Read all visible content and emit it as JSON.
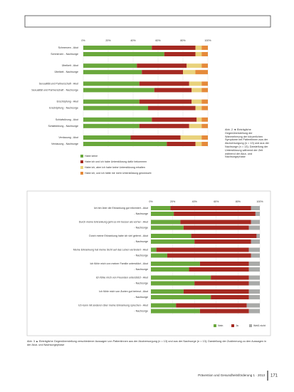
{
  "chart_data": [
    {
      "type": "stacked-bar-horizontal",
      "categories": [
        "Schmerzen - Akut",
        "Schmerzen - Nachsorge",
        "Übelkeit - Akut",
        "Übelkeit - Nachsorge",
        "Sexualität und Partnerschaft - Akut",
        "Sexualität und Partnerschaft - Nachsorge",
        "Erschöpfung - Akut",
        "Erschöpfung - Nachsorge",
        "Schlafstörung - Akut",
        "Schlafstörung - Nachsorge",
        "Verdauung - Akut",
        "Verdauung - Nachsorge"
      ],
      "series": [
        {
          "name": "Habe keine",
          "color": "#6aa83c",
          "values": [
            55,
            65,
            43,
            47,
            45,
            57,
            45,
            52,
            55,
            45,
            38,
            67
          ]
        },
        {
          "name": "Habe ich und ich habe Unterstützung dafür bekommen",
          "color": "#a52a22",
          "values": [
            35,
            25,
            40,
            33,
            40,
            30,
            42,
            38,
            36,
            40,
            40,
            23
          ]
        },
        {
          "name": "Habe ich, aber ich habe keine Unterstützung erhalten",
          "color": "#e9d27c",
          "values": [
            5,
            5,
            12,
            10,
            10,
            8,
            8,
            5,
            4,
            10,
            17,
            5
          ]
        },
        {
          "name": "Habe ich, und ich hätte mir mehr Unterstützung gewünscht",
          "color": "#e58a3a",
          "values": [
            5,
            5,
            5,
            10,
            5,
            5,
            5,
            5,
            5,
            5,
            5,
            5
          ]
        }
      ],
      "xlim": [
        0,
        100
      ],
      "xticks": [
        {
          "value": 0,
          "label": "0%"
        },
        {
          "value": 20,
          "label": "20%"
        },
        {
          "value": 40,
          "label": "40%"
        },
        {
          "value": 60,
          "label": "60%"
        },
        {
          "value": 80,
          "label": "80%"
        },
        {
          "value": 100,
          "label": "100%"
        }
      ],
      "grid": true
    },
    {
      "type": "stacked-bar-horizontal",
      "categories": [
        "Ich bin über die Erkrankung gut informiert - Akut",
        "- Nachsorge",
        "Durch meine Erkrankung geht es mir besser als vorher - Akut",
        "- Nachsorge",
        "Durch meine Erkrankung habe ich viel gelernt - Akut",
        "- Nachsorge",
        "Meine Erkrankung hat meine Sicht auf das Leben verändert - Akut",
        "- Nachsorge",
        "Ich fühle mich von meiner Familie unterstützt - Akut",
        "- Nachsorge",
        "Ich fühle mich von Freunden unterstützt - Akut",
        "- Nachsorge",
        "Ich fühle mich von Ärzten gut betreut - Akut",
        "- Nachsorge",
        "Ich kann mit anderen über meine Erkrankung sprechen - Akut",
        "- Nachsorge"
      ],
      "series": [
        {
          "name": "Nein",
          "color": "#6aa83c",
          "values": [
            18,
            21,
            27,
            30,
            37,
            40,
            5,
            15,
            45,
            35,
            55,
            40,
            30,
            55,
            23,
            45
          ]
        },
        {
          "name": "Ja",
          "color": "#a52a22",
          "values": [
            74,
            75,
            65,
            60,
            60,
            52,
            85,
            77,
            45,
            55,
            35,
            50,
            60,
            35,
            65,
            45
          ]
        },
        {
          "name": "Weiß nicht",
          "color": "#a9aaa8",
          "values": [
            8,
            4,
            8,
            10,
            3,
            8,
            10,
            8,
            10,
            10,
            10,
            10,
            10,
            10,
            12,
            10
          ]
        }
      ],
      "xlim": [
        0,
        100
      ],
      "xticks": [
        {
          "value": 0,
          "label": "0%"
        },
        {
          "value": 20,
          "label": "20%"
        },
        {
          "value": 40,
          "label": "40%"
        },
        {
          "value": 60,
          "label": "60%"
        },
        {
          "value": 80,
          "label": "80%"
        },
        {
          "value": 100,
          "label": "100%"
        }
      ],
      "grid": true
    }
  ],
  "captions": [
    "Abb. 2 ◄ Einträgliche Gegenüberstellung der Wahrnehmung der körperlichen Symptome bei Patientinnen aus der Akutversorgung (n = 13) und aus der Nachsorge (n = 13); Darstellung der Unterstützung während der Zeit während der Akut- und Nachsorgephase",
    "Abb. 3 ▲ Einträgliche Gegenüberstellung verschiedener Aussagen von Patientinnen aus der Akutversorgung (n = 13) und aus der Nachsorge (n = 13); Darstellung der Zustimmung zu den Aussagen in der Akut- und Nachsorgephase"
  ],
  "footer": {
    "journal": "Prävention und Gesundheitsförderung 1 · 2013",
    "page": "171"
  }
}
